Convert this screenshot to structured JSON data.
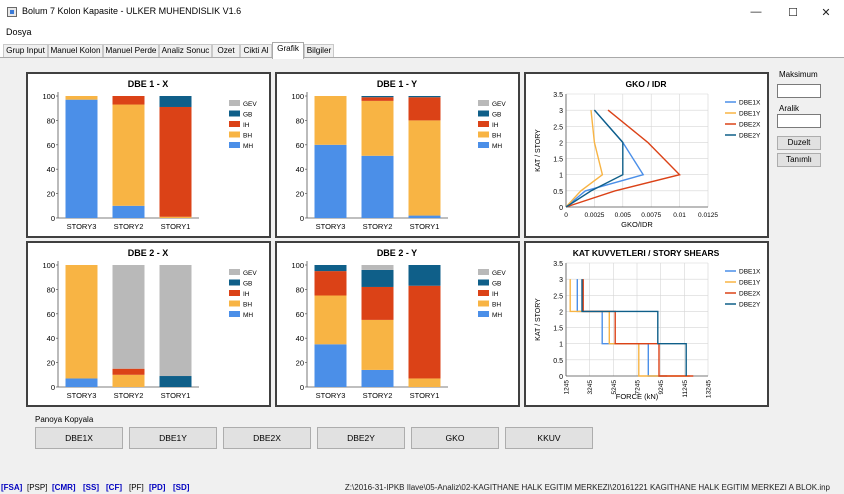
{
  "window": {
    "title": "Bolum 7 Kolon Kapasite - ULKER MUHENDISLIK V1.6",
    "minimize_glyph": "—",
    "maximize_glyph": "☐",
    "close_glyph": "✕"
  },
  "menu": {
    "file": "Dosya"
  },
  "tabs": [
    "Grup Input",
    "Manuel Kolon",
    "Manuel Perde",
    "Analiz Sonuc",
    "Ozet",
    "Cikti Al",
    "Grafik",
    "Bilgiler"
  ],
  "active_tab": "Grafik",
  "side": {
    "max_label": "Maksimum",
    "interval_label": "Aralik",
    "fix_button": "Duzelt",
    "define_button": "Tanımlı"
  },
  "copy": {
    "label": "Panoya Kopyala",
    "buttons": [
      "DBE1X",
      "DBE1Y",
      "DBE2X",
      "DBE2Y",
      "GKO",
      "KKUV"
    ]
  },
  "status": {
    "items": [
      "[FSA]",
      "[PSP]",
      "[CMR]",
      "[SS]",
      "[CF]",
      "[PF]",
      "[PD]",
      "[SD]"
    ],
    "colors": [
      "#0000c0",
      "#000000",
      "#0000c0",
      "#0000c0",
      "#0000c0",
      "#000000",
      "#0000c0",
      "#0000c0"
    ],
    "path": "Z:\\2016-31-IPKB Ilave\\05-Analiz\\02-KAGITHANE HALK EGITIM MERKEZI\\20161221 KAGITHANE HALK EGITIM MERKEZI A BLOK.inp"
  },
  "chart_data": [
    {
      "type": "bar",
      "title": "DBE 1 - X",
      "categories": [
        "STORY3",
        "STORY2",
        "STORY1"
      ],
      "ylim": [
        0,
        100
      ],
      "yticks": [
        0,
        20,
        40,
        60,
        80,
        100
      ],
      "series": [
        {
          "name": "MH",
          "color": "#4b8fe8",
          "values": [
            97,
            10,
            0
          ]
        },
        {
          "name": "BH",
          "color": "#f8b444",
          "values": [
            3,
            83,
            1
          ]
        },
        {
          "name": "IH",
          "color": "#db4217",
          "values": [
            0,
            7,
            90
          ]
        },
        {
          "name": "GB",
          "color": "#0f5f89",
          "values": [
            0,
            0,
            9
          ]
        },
        {
          "name": "GEV",
          "color": "#b9b9b9",
          "values": [
            0,
            0,
            0
          ]
        }
      ]
    },
    {
      "type": "bar",
      "title": "DBE 1 - Y",
      "categories": [
        "STORY3",
        "STORY2",
        "STORY1"
      ],
      "ylim": [
        0,
        100
      ],
      "yticks": [
        0,
        20,
        40,
        60,
        80,
        100
      ],
      "series": [
        {
          "name": "MH",
          "color": "#4b8fe8",
          "values": [
            60,
            51,
            2
          ]
        },
        {
          "name": "BH",
          "color": "#f8b444",
          "values": [
            40,
            45,
            78
          ]
        },
        {
          "name": "IH",
          "color": "#db4217",
          "values": [
            0,
            3,
            19
          ]
        },
        {
          "name": "GB",
          "color": "#0f5f89",
          "values": [
            0,
            1,
            1
          ]
        },
        {
          "name": "GEV",
          "color": "#b9b9b9",
          "values": [
            0,
            0,
            0
          ]
        }
      ]
    },
    {
      "type": "line",
      "title": "GKO / IDR",
      "xlabel": "GKO/IDR",
      "ylabel": "KAT / STORY",
      "xlim": [
        0,
        0.0125
      ],
      "ylim": [
        0,
        3.5
      ],
      "xticks": [
        0,
        0.0025,
        0.005,
        0.0075,
        0.01,
        0.0125
      ],
      "xtick_labels": [
        "0",
        "0.0025",
        "0.005",
        "0.0075",
        "0.01",
        "0.0125"
      ],
      "yticks": [
        0,
        0.5,
        1,
        1.5,
        2,
        2.5,
        3,
        3.5
      ],
      "series": [
        {
          "name": "DBE1X",
          "color": "#4b8fe8",
          "x": [
            0,
            0.0017,
            0.0068,
            0.005,
            0.0025
          ],
          "y": [
            0,
            0.5,
            1,
            2,
            3
          ]
        },
        {
          "name": "DBE1Y",
          "color": "#f8b444",
          "x": [
            0,
            0.0013,
            0.0032,
            0.0025,
            0.0022
          ],
          "y": [
            0,
            0.5,
            1,
            2,
            3
          ]
        },
        {
          "name": "DBE2X",
          "color": "#db4217",
          "x": [
            0,
            0.0043,
            0.01,
            0.0072,
            0.0037
          ],
          "y": [
            0,
            0.5,
            1,
            2,
            3
          ]
        },
        {
          "name": "DBE2Y",
          "color": "#0f5f89",
          "x": [
            0,
            0.0022,
            0.005,
            0.005,
            0.0025
          ],
          "y": [
            0,
            0.5,
            1,
            2,
            3
          ]
        }
      ]
    },
    {
      "type": "bar",
      "title": "DBE 2 - X",
      "categories": [
        "STORY3",
        "STORY2",
        "STORY1"
      ],
      "ylim": [
        0,
        100
      ],
      "yticks": [
        0,
        20,
        40,
        60,
        80,
        100
      ],
      "series": [
        {
          "name": "MH",
          "color": "#4b8fe8",
          "values": [
            7,
            0,
            0
          ]
        },
        {
          "name": "BH",
          "color": "#f8b444",
          "values": [
            93,
            10,
            0
          ]
        },
        {
          "name": "IH",
          "color": "#db4217",
          "values": [
            0,
            5,
            0
          ]
        },
        {
          "name": "GB",
          "color": "#0f5f89",
          "values": [
            0,
            0,
            9
          ]
        },
        {
          "name": "GEV",
          "color": "#b9b9b9",
          "values": [
            0,
            85,
            91
          ]
        }
      ]
    },
    {
      "type": "bar",
      "title": "DBE 2 - Y",
      "categories": [
        "STORY3",
        "STORY2",
        "STORY1"
      ],
      "ylim": [
        0,
        100
      ],
      "yticks": [
        0,
        20,
        40,
        60,
        80,
        100
      ],
      "series": [
        {
          "name": "MH",
          "color": "#4b8fe8",
          "values": [
            35,
            14,
            0
          ]
        },
        {
          "name": "BH",
          "color": "#f8b444",
          "values": [
            40,
            41,
            7
          ]
        },
        {
          "name": "IH",
          "color": "#db4217",
          "values": [
            20,
            27,
            76
          ]
        },
        {
          "name": "GB",
          "color": "#0f5f89",
          "values": [
            5,
            14,
            17
          ]
        },
        {
          "name": "GEV",
          "color": "#b9b9b9",
          "values": [
            0,
            4,
            0
          ]
        }
      ]
    },
    {
      "type": "line",
      "title": "KAT KUVVETLERI / STORY SHEARS",
      "xlabel": "FORCE (kN)",
      "ylabel": "KAT / STORY",
      "xlim": [
        1245,
        13245
      ],
      "ylim": [
        0,
        3.5
      ],
      "xticks": [
        1245,
        3245,
        5245,
        7245,
        9245,
        11245,
        13245
      ],
      "yticks": [
        0,
        0.5,
        1,
        1.5,
        2,
        2.5,
        3,
        3.5
      ],
      "series": [
        {
          "name": "DBE1X",
          "color": "#4b8fe8",
          "x": [
            2200,
            2200,
            4300,
            4300,
            8200,
            8200,
            9800,
            9800
          ],
          "y": [
            3,
            2,
            2,
            1,
            1,
            0,
            0,
            0
          ]
        },
        {
          "name": "DBE1Y",
          "color": "#f8b444",
          "x": [
            1600,
            1600,
            4900,
            4900,
            7400,
            7400,
            11700,
            11700
          ],
          "y": [
            3,
            2,
            2,
            1,
            1,
            0,
            0,
            0
          ]
        },
        {
          "name": "DBE2X",
          "color": "#db4217",
          "x": [
            2700,
            2700,
            5400,
            5400,
            9100,
            9100,
            12000,
            12000
          ],
          "y": [
            3,
            2,
            2,
            1,
            1,
            0,
            0,
            0
          ]
        },
        {
          "name": "DBE2Y",
          "color": "#0f5f89",
          "x": [
            2600,
            2600,
            9000,
            9000,
            11400,
            11400,
            11400
          ],
          "y": [
            3,
            2,
            2,
            1,
            1,
            0,
            0
          ]
        }
      ]
    }
  ]
}
